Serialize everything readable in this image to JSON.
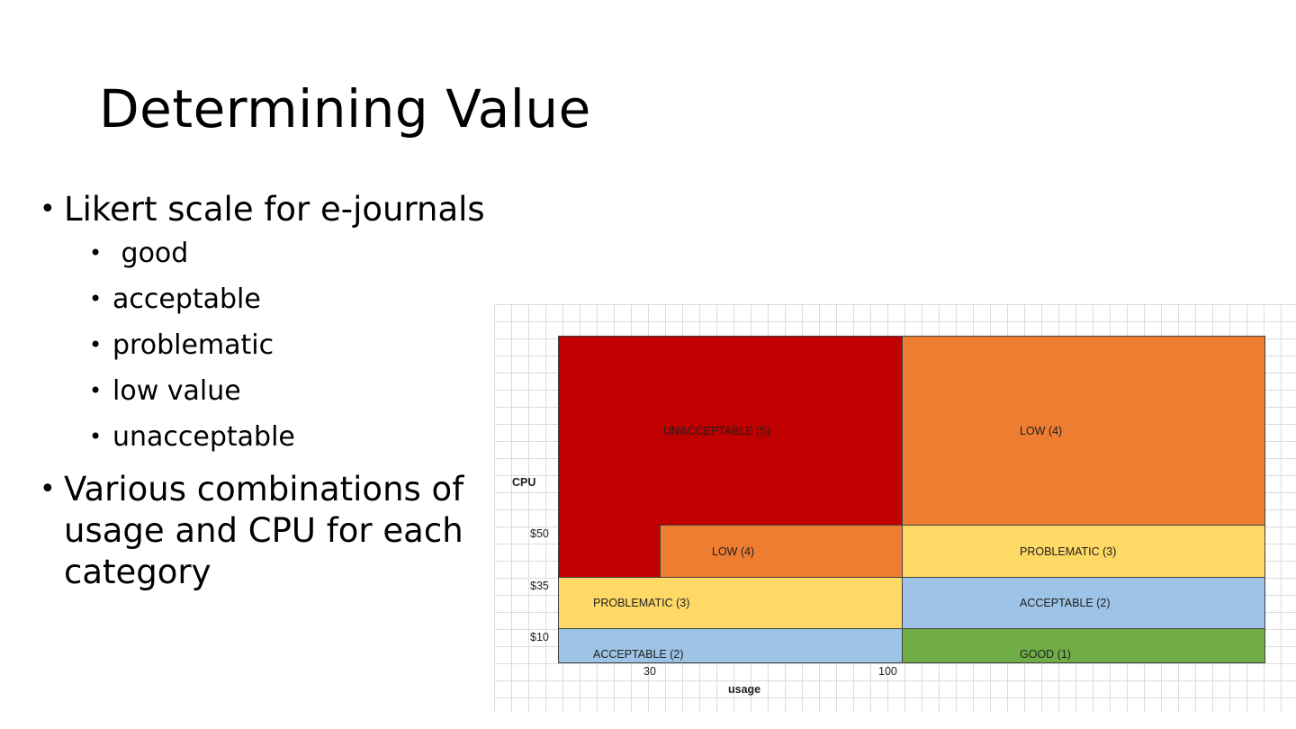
{
  "slide": {
    "title": "Determining Value",
    "bullets": [
      {
        "text": "Likert scale for e-journals",
        "sub": [
          " good",
          "acceptable",
          "problematic",
          "low value",
          "unacceptable"
        ]
      },
      {
        "text": "Various combinations of usage and CPU for each category",
        "sub": []
      }
    ]
  },
  "matrix": {
    "y_axis_label": "CPU",
    "x_axis_label": "usage",
    "y_ticks": [
      "$50",
      "$35",
      "$10"
    ],
    "x_ticks": [
      "30",
      "100"
    ],
    "regions": [
      {
        "label": "UNACCEPTABLE (5)",
        "color": "#c00000"
      },
      {
        "label": "LOW (4)",
        "color": "#ed7d31"
      },
      {
        "label": "LOW (4)",
        "color": "#ed7d31"
      },
      {
        "label": "PROBLEMATIC (3)",
        "color": "#ffd966"
      },
      {
        "label": "PROBLEMATIC (3)",
        "color": "#ffd966"
      },
      {
        "label": "ACCEPTABLE (2)",
        "color": "#9dc3e6"
      },
      {
        "label": "ACCEPTABLE (2)",
        "color": "#9dc3e6"
      },
      {
        "label": "GOOD (1)",
        "color": "#70ad47"
      }
    ]
  }
}
